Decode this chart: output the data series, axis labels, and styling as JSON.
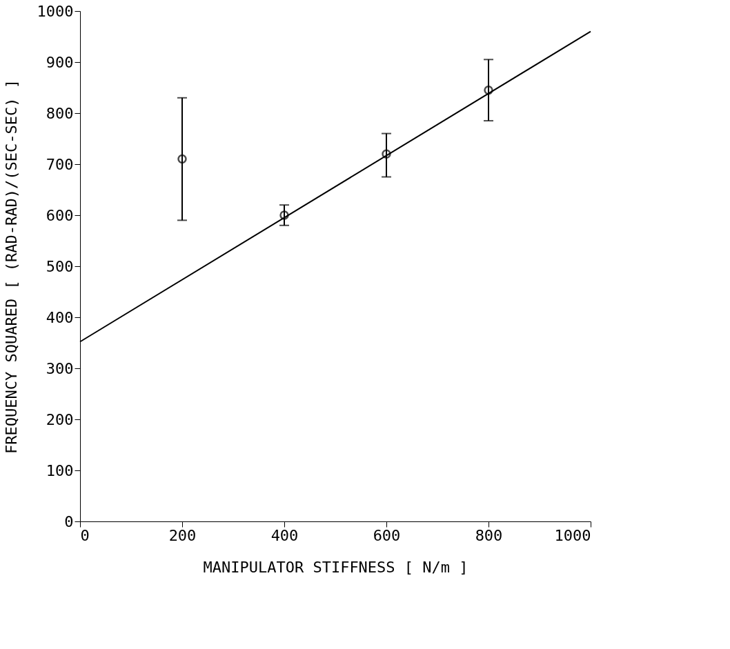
{
  "chart_data": {
    "type": "scatter",
    "xlabel": "MANIPULATOR STIFFNESS [ N/m ]",
    "ylabel": "FREQUENCY SQUARED [ (RAD-RAD)/(SEC-SEC) ]",
    "x": [
      200,
      400,
      600,
      800
    ],
    "series": [
      {
        "color": "#000000",
        "values": [
          710,
          600,
          720,
          845
        ],
        "errors": [
          [
            590,
            830
          ],
          [
            580,
            620
          ],
          [
            675,
            760
          ],
          [
            785,
            905
          ]
        ],
        "marker": "circle"
      },
      {
        "type": "line",
        "color": "#000000",
        "x": [
          0,
          1000
        ],
        "values": [
          352,
          960
        ],
        "line_style": "solid"
      }
    ],
    "xlim": [
      0,
      1000
    ],
    "xticks": [
      0,
      200,
      400,
      600,
      800,
      1000
    ],
    "ylim": [
      0,
      1000
    ],
    "yticks": [
      0,
      100,
      200,
      300,
      400,
      500,
      600,
      700,
      800,
      900,
      1000
    ],
    "grid": false
  }
}
